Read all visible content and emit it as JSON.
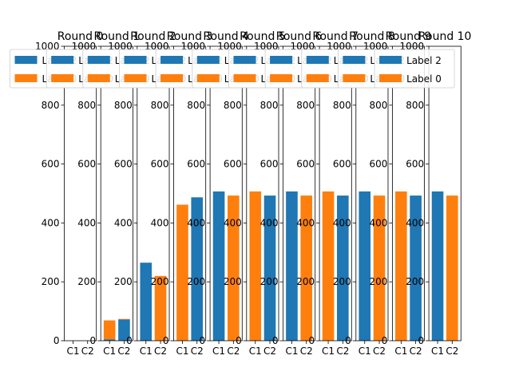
{
  "colors": {
    "label2": "#1f77b4",
    "label0": "#ff7f0e"
  },
  "chart_data": {
    "type": "bar",
    "stacked": true,
    "categories": [
      "C1",
      "C2"
    ],
    "ylim": [
      0,
      1000
    ],
    "yticks": [
      0,
      200,
      400,
      600,
      800,
      1000
    ],
    "legend_placement": "top",
    "legend_labels": [
      "Label 2",
      "Label 0"
    ],
    "panels": [
      {
        "title": "Round 0",
        "series": [
          {
            "name": "Label 2",
            "values": [
              0,
              0
            ]
          },
          {
            "name": "Label 0",
            "values": [
              0,
              0
            ]
          }
        ]
      },
      {
        "title": "Round 1",
        "series": [
          {
            "name": "Label 2",
            "values": [
              5,
              72
            ]
          },
          {
            "name": "Label 0",
            "values": [
              64,
              2
            ]
          }
        ]
      },
      {
        "title": "Round 2",
        "series": [
          {
            "name": "Label 2",
            "values": [
              265,
              0
            ]
          },
          {
            "name": "Label 0",
            "values": [
              0,
              220
            ]
          }
        ]
      },
      {
        "title": "Round 3",
        "series": [
          {
            "name": "Label 2",
            "values": [
              0,
              487
            ]
          },
          {
            "name": "Label 0",
            "values": [
              462,
              0
            ]
          }
        ]
      },
      {
        "title": "Round 4",
        "series": [
          {
            "name": "Label 2",
            "values": [
              507,
              0
            ]
          },
          {
            "name": "Label 0",
            "values": [
              0,
              493
            ]
          }
        ]
      },
      {
        "title": "Round 5",
        "series": [
          {
            "name": "Label 2",
            "values": [
              0,
              493
            ]
          },
          {
            "name": "Label 0",
            "values": [
              507,
              0
            ]
          }
        ]
      },
      {
        "title": "Round 6",
        "series": [
          {
            "name": "Label 2",
            "values": [
              507,
              0
            ]
          },
          {
            "name": "Label 0",
            "values": [
              0,
              493
            ]
          }
        ]
      },
      {
        "title": "Round 7",
        "series": [
          {
            "name": "Label 2",
            "values": [
              0,
              493
            ]
          },
          {
            "name": "Label 0",
            "values": [
              507,
              0
            ]
          }
        ]
      },
      {
        "title": "Round 8",
        "series": [
          {
            "name": "Label 2",
            "values": [
              507,
              0
            ]
          },
          {
            "name": "Label 0",
            "values": [
              0,
              493
            ]
          }
        ]
      },
      {
        "title": "Round 9",
        "series": [
          {
            "name": "Label 2",
            "values": [
              0,
              493
            ]
          },
          {
            "name": "Label 0",
            "values": [
              507,
              0
            ]
          }
        ]
      },
      {
        "title": "Round 10",
        "series": [
          {
            "name": "Label 2",
            "values": [
              507,
              0
            ]
          },
          {
            "name": "Label 0",
            "values": [
              0,
              493
            ]
          }
        ]
      }
    ]
  }
}
